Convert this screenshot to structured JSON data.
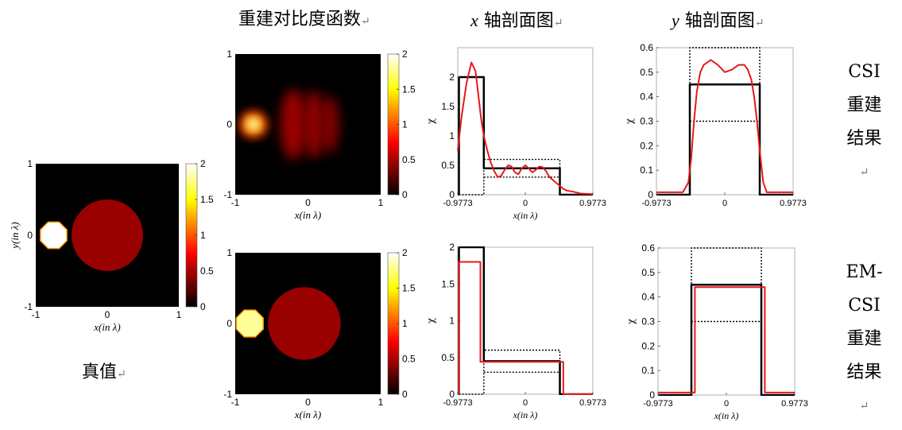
{
  "headers": {
    "contrast": "重建对比度函数",
    "x_profile_axis": "x",
    "x_profile_rest": "轴剖面图",
    "y_profile_axis": "y",
    "y_profile_rest": "轴剖面图",
    "return_mark": "↵"
  },
  "row_labels": {
    "csi": [
      "CSI",
      "重建",
      "结果"
    ],
    "emcsi": [
      "EM-",
      "CSI",
      "重建",
      "结果"
    ]
  },
  "truth_label": "真值",
  "colors": {
    "truth": "#000000",
    "reconstruction": "#e8181c",
    "bounds": "#000000",
    "colormap": "hot"
  },
  "chart_data": [
    {
      "id": "true-value-map",
      "type": "heatmap",
      "xlabel": "x(in λ)",
      "ylabel": "y(in λ)",
      "xlim": [
        -1,
        1
      ],
      "ylim": [
        -1,
        1
      ],
      "xticks": [
        "-1",
        "0",
        "1"
      ],
      "yticks": [
        "-1",
        "0",
        "1"
      ],
      "colorbar": {
        "range": [
          0,
          2
        ],
        "ticks": [
          "0",
          "0.5",
          "1",
          "1.5",
          "2"
        ]
      },
      "objects": [
        {
          "shape": "octagon",
          "cx": -0.75,
          "cy": 0.0,
          "r": 0.2,
          "value": 2.0
        },
        {
          "shape": "circle",
          "cx": 0.0,
          "cy": 0.0,
          "r": 0.5,
          "value": 0.45
        }
      ]
    },
    {
      "id": "csi-contrast-map",
      "type": "heatmap",
      "xlabel": "x(in λ)",
      "ylabel": "",
      "xlim": [
        -1,
        1
      ],
      "ylim": [
        -1,
        1
      ],
      "xticks": [
        "-1",
        "0",
        "1"
      ],
      "yticks": [
        "-1",
        "0",
        "1"
      ],
      "colorbar": {
        "range": [
          0,
          2
        ],
        "ticks": [
          "0",
          "0.5",
          "1",
          "1.5",
          "2"
        ]
      },
      "objects": [
        {
          "shape": "blob",
          "cx": -0.75,
          "cy": 0.0,
          "rx": 0.17,
          "ry": 0.17,
          "value": 2.0
        },
        {
          "shape": "blob",
          "cx": -0.2,
          "cy": 0.0,
          "rx": 0.18,
          "ry": 0.5,
          "value": 0.45
        },
        {
          "shape": "blob",
          "cx": 0.08,
          "cy": 0.0,
          "rx": 0.15,
          "ry": 0.48,
          "value": 0.42
        },
        {
          "shape": "blob",
          "cx": 0.3,
          "cy": 0.0,
          "rx": 0.13,
          "ry": 0.4,
          "value": 0.38
        }
      ]
    },
    {
      "id": "csi-x-profile",
      "type": "line",
      "xlabel": "x(in λ)",
      "ylabel": "χ",
      "xlim": [
        -0.9773,
        0.9773
      ],
      "ylim": [
        0,
        2.5
      ],
      "xticks": [
        "-0.9773",
        "0",
        "0.9773"
      ],
      "yticks": [
        "0",
        "0.5",
        "1",
        "1.5",
        "2"
      ],
      "series": [
        {
          "role": "truth",
          "style": "solid",
          "x": [
            -0.9773,
            -0.96,
            -0.96,
            -0.6,
            -0.6,
            0.5,
            0.5,
            0.9773
          ],
          "y": [
            0,
            0,
            2.0,
            2.0,
            0.45,
            0.45,
            0,
            0
          ]
        },
        {
          "role": "upper-bound",
          "style": "dotted",
          "x": [
            -0.96,
            -0.6,
            -0.6,
            0.5,
            0.5
          ],
          "y": [
            0,
            0,
            0.6,
            0.6,
            0
          ]
        },
        {
          "role": "lower-bound",
          "style": "dotted",
          "x": [
            -0.6,
            0.5
          ],
          "y": [
            0.3,
            0.3
          ]
        },
        {
          "role": "reconstruction",
          "style": "solid",
          "x": [
            -0.9773,
            -0.92,
            -0.85,
            -0.78,
            -0.72,
            -0.68,
            -0.64,
            -0.6,
            -0.55,
            -0.5,
            -0.45,
            -0.4,
            -0.35,
            -0.3,
            -0.25,
            -0.2,
            -0.15,
            -0.1,
            -0.05,
            0.0,
            0.05,
            0.1,
            0.15,
            0.2,
            0.25,
            0.3,
            0.35,
            0.4,
            0.45,
            0.5,
            0.55,
            0.6,
            0.7,
            0.8,
            0.9773
          ],
          "y": [
            0.75,
            1.35,
            1.9,
            2.25,
            2.1,
            1.7,
            1.3,
            1.0,
            0.75,
            0.55,
            0.4,
            0.3,
            0.32,
            0.42,
            0.5,
            0.48,
            0.38,
            0.35,
            0.45,
            0.5,
            0.45,
            0.38,
            0.42,
            0.48,
            0.47,
            0.4,
            0.3,
            0.25,
            0.2,
            0.15,
            0.1,
            0.07,
            0.05,
            0.02,
            0.01
          ]
        }
      ]
    },
    {
      "id": "csi-y-profile",
      "type": "line",
      "xlabel": "",
      "ylabel": "χ",
      "xlim": [
        -0.9773,
        0.9773
      ],
      "ylim": [
        0,
        0.6
      ],
      "xticks": [
        "-0.9773",
        "0",
        "0.9773"
      ],
      "yticks": [
        "0",
        "0.1",
        "0.2",
        "0.3",
        "0.4",
        "0.5",
        "0.6"
      ],
      "series": [
        {
          "role": "truth",
          "style": "solid",
          "x": [
            -0.9773,
            -0.5,
            -0.5,
            0.5,
            0.5,
            0.9773
          ],
          "y": [
            0,
            0,
            0.45,
            0.45,
            0,
            0
          ]
        },
        {
          "role": "upper-bound",
          "style": "dotted",
          "x": [
            -0.5,
            -0.5,
            0.5,
            0.5
          ],
          "y": [
            0,
            0.6,
            0.6,
            0
          ]
        },
        {
          "role": "lower-bound",
          "style": "dotted",
          "x": [
            -0.5,
            0.5
          ],
          "y": [
            0.3,
            0.3
          ]
        },
        {
          "role": "reconstruction",
          "style": "solid",
          "x": [
            -0.9773,
            -0.6,
            -0.52,
            -0.48,
            -0.44,
            -0.4,
            -0.35,
            -0.3,
            -0.2,
            -0.1,
            0.0,
            0.1,
            0.2,
            0.28,
            0.33,
            0.38,
            0.42,
            0.46,
            0.5,
            0.55,
            0.6,
            0.9773
          ],
          "y": [
            0.01,
            0.01,
            0.05,
            0.15,
            0.3,
            0.42,
            0.5,
            0.53,
            0.55,
            0.53,
            0.5,
            0.51,
            0.53,
            0.53,
            0.51,
            0.47,
            0.4,
            0.3,
            0.18,
            0.05,
            0.01,
            0.01
          ]
        }
      ]
    },
    {
      "id": "emcsi-contrast-map",
      "type": "heatmap",
      "xlabel": "x(in λ)",
      "ylabel": "",
      "xlim": [
        -1,
        1
      ],
      "ylim": [
        -1,
        1
      ],
      "xticks": [
        "-1",
        "0",
        "1"
      ],
      "yticks": [
        "-1",
        "0",
        "1"
      ],
      "colorbar": {
        "range": [
          0,
          2
        ],
        "ticks": [
          "0",
          "0.5",
          "1",
          "1.5",
          "2"
        ]
      },
      "objects": [
        {
          "shape": "octagon",
          "cx": -0.8,
          "cy": 0.0,
          "r": 0.2,
          "value": 1.8
        },
        {
          "shape": "circle",
          "cx": -0.05,
          "cy": 0.0,
          "r": 0.5,
          "value": 0.45
        }
      ]
    },
    {
      "id": "emcsi-x-profile",
      "type": "line",
      "xlabel": "x(in λ)",
      "ylabel": "χ",
      "xlim": [
        -0.9773,
        0.9773
      ],
      "ylim": [
        0,
        2
      ],
      "xticks": [
        "-0.9773",
        "0",
        "0.9773"
      ],
      "yticks": [
        "0",
        "0.5",
        "1",
        "1.5",
        "2"
      ],
      "series": [
        {
          "role": "truth",
          "style": "solid",
          "x": [
            -0.9773,
            -0.96,
            -0.96,
            -0.6,
            -0.6,
            0.5,
            0.5,
            0.9773
          ],
          "y": [
            0,
            0,
            2.0,
            2.0,
            0.45,
            0.45,
            0,
            0
          ]
        },
        {
          "role": "upper-bound",
          "style": "dotted",
          "x": [
            -0.96,
            -0.6,
            -0.6,
            0.5,
            0.5
          ],
          "y": [
            0,
            0,
            0.6,
            0.6,
            0
          ]
        },
        {
          "role": "lower-bound",
          "style": "dotted",
          "x": [
            -0.6,
            0.5
          ],
          "y": [
            0.3,
            0.3
          ]
        },
        {
          "role": "reconstruction",
          "style": "solid",
          "x": [
            -0.9773,
            -0.96,
            -0.96,
            -0.65,
            -0.65,
            0.55,
            0.55,
            0.9773
          ],
          "y": [
            0,
            0,
            1.8,
            1.8,
            0.44,
            0.44,
            0,
            0
          ]
        }
      ]
    },
    {
      "id": "emcsi-y-profile",
      "type": "line",
      "xlabel": "x(in λ)",
      "ylabel": "χ",
      "xlim": [
        -0.9773,
        0.9773
      ],
      "ylim": [
        0,
        0.6
      ],
      "xticks": [
        "-0.9773",
        "0",
        "0.9773"
      ],
      "yticks": [
        "0",
        "0.1",
        "0.2",
        "0.3",
        "0.4",
        "0.5",
        "0.6"
      ],
      "series": [
        {
          "role": "truth",
          "style": "solid",
          "x": [
            -0.9773,
            -0.5,
            -0.5,
            0.5,
            0.5,
            0.9773
          ],
          "y": [
            0,
            0,
            0.45,
            0.45,
            0,
            0
          ]
        },
        {
          "role": "upper-bound",
          "style": "dotted",
          "x": [
            -0.5,
            -0.5,
            0.5,
            0.5
          ],
          "y": [
            0,
            0.6,
            0.6,
            0
          ]
        },
        {
          "role": "lower-bound",
          "style": "dotted",
          "x": [
            -0.5,
            0.5
          ],
          "y": [
            0.3,
            0.3
          ]
        },
        {
          "role": "reconstruction",
          "style": "solid",
          "x": [
            -0.9773,
            -0.45,
            -0.45,
            0.55,
            0.55,
            0.9773
          ],
          "y": [
            0.01,
            0.01,
            0.44,
            0.44,
            0.01,
            0.01
          ]
        }
      ]
    }
  ]
}
